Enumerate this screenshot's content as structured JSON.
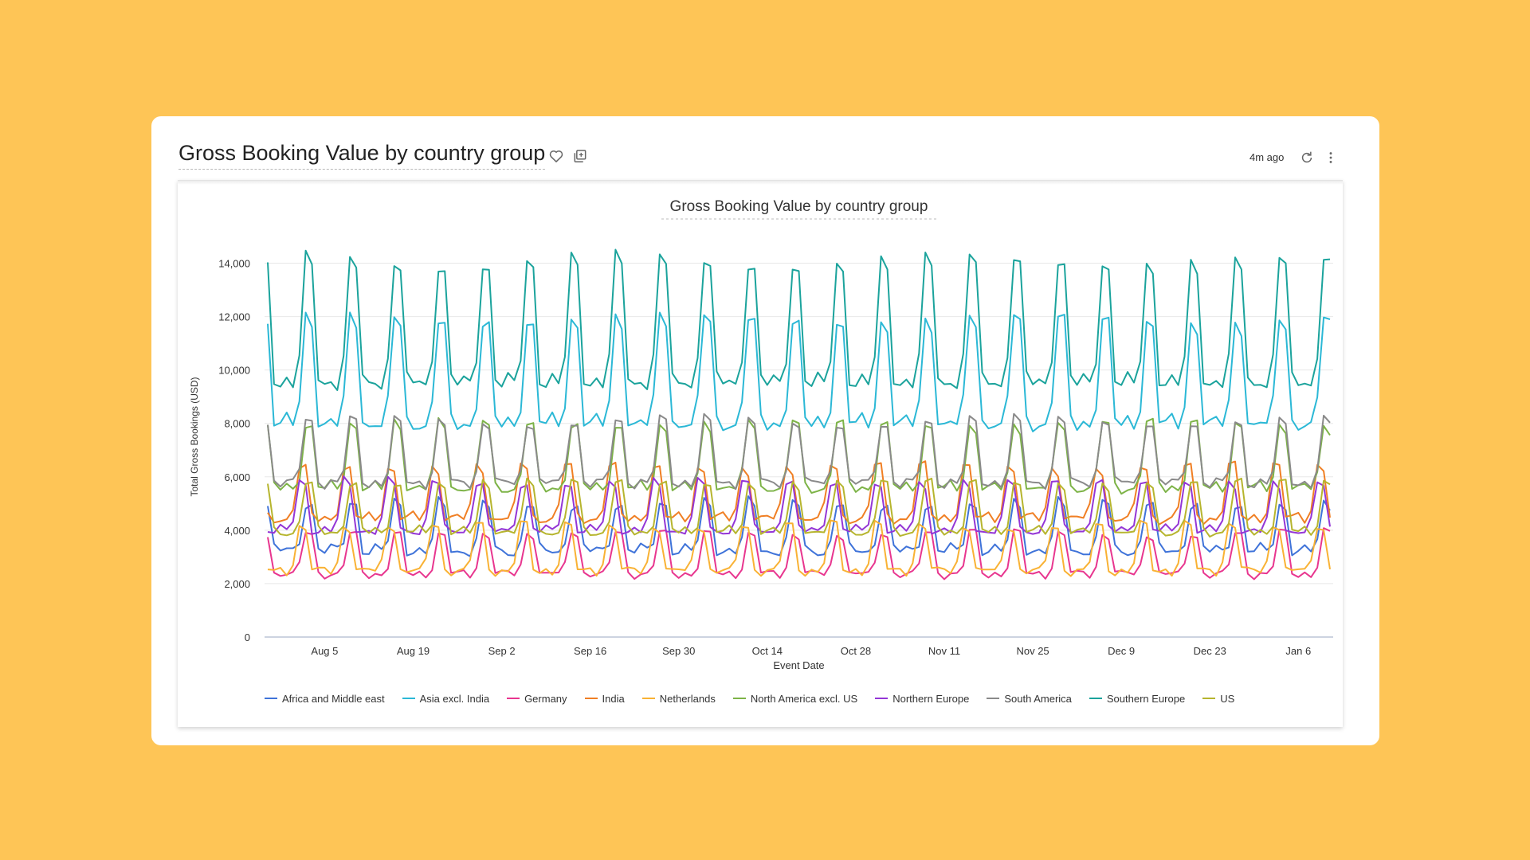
{
  "card": {
    "title": "Gross Booking Value by country group",
    "age": "4m ago",
    "icons": [
      "heart-icon",
      "copy-icon",
      "refresh-icon",
      "more-icon"
    ]
  },
  "chart_data": {
    "type": "line",
    "title": "Gross Booking Value by country group",
    "xlabel": "Event Date",
    "ylabel": "Total Gross Bookings (USD)",
    "ylim": [
      0,
      15000
    ],
    "yticks": [
      0,
      2000,
      4000,
      6000,
      8000,
      10000,
      12000,
      14000
    ],
    "ytick_labels": [
      "0",
      "2,000",
      "4,000",
      "6,000",
      "8,000",
      "10,000",
      "12,000",
      "14,000"
    ],
    "xtick_labels": [
      "Aug 5",
      "Aug 19",
      "Sep 2",
      "Sep 16",
      "Sep 30",
      "Oct 14",
      "Oct 28",
      "Nov 11",
      "Nov 25",
      "Dec 9",
      "Dec 23",
      "Jan 6"
    ],
    "x_start": "2024-07-27",
    "x_end": "2025-01-11",
    "days": 169,
    "legend_position": "bottom",
    "grid": true,
    "series": [
      {
        "name": "Africa and Middle east",
        "color": "#3F73D9",
        "base": 3100,
        "peak": 5000,
        "amp": 250,
        "offset": 0
      },
      {
        "name": "Asia excl. India",
        "color": "#2BB8D6",
        "base": 7700,
        "peak": 11900,
        "amp": 320,
        "offset": 0
      },
      {
        "name": "Germany",
        "color": "#E8368F",
        "base": 2250,
        "peak": 3900,
        "amp": 170,
        "offset": 0
      },
      {
        "name": "India",
        "color": "#F07F24",
        "base": 4300,
        "peak": 6400,
        "amp": 230,
        "offset": 1
      },
      {
        "name": "Netherlands",
        "color": "#F9B234",
        "base": 2350,
        "peak": 4200,
        "amp": 170,
        "offset": 1
      },
      {
        "name": "North America excl. US",
        "color": "#7DB347",
        "base": 5400,
        "peak": 8000,
        "amp": 240,
        "offset": 0
      },
      {
        "name": "Northern Europe",
        "color": "#9436D6",
        "base": 3850,
        "peak": 5800,
        "amp": 190,
        "offset": 1
      },
      {
        "name": "South America",
        "color": "#8A8A8A",
        "base": 5600,
        "peak": 8100,
        "amp": 190,
        "offset": 0
      },
      {
        "name": "Southern Europe",
        "color": "#1BA39C",
        "base": 9200,
        "peak": 14100,
        "amp": 260,
        "offset": 0
      },
      {
        "name": "US",
        "color": "#B6B52E",
        "base": 3800,
        "peak": 5800,
        "amp": 200,
        "offset": 0
      }
    ]
  }
}
